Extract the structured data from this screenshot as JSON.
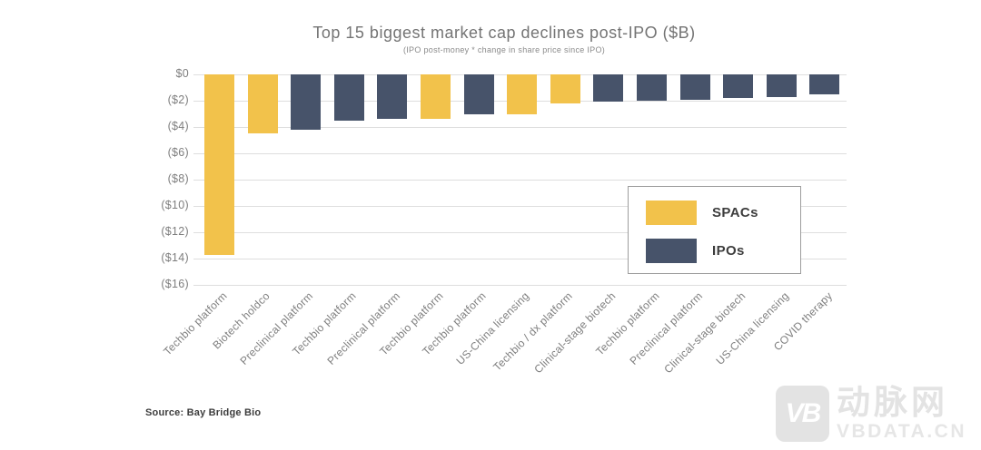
{
  "header": {
    "title": "Top 15 biggest market cap declines post-IPO ($B)",
    "subtitle": "(IPO post-money * change in share price since IPO)"
  },
  "legend": {
    "items": [
      {
        "label": "SPACs",
        "color": "#F2C24B"
      },
      {
        "label": "IPOs",
        "color": "#47536A"
      }
    ]
  },
  "footer": {
    "source": "Source: Bay Bridge Bio"
  },
  "watermark": {
    "logo_text": "VB",
    "cn_name": "动脉网",
    "site": "VBDATA.CN"
  },
  "chart_data": {
    "type": "bar",
    "title": "Top 15 biggest market cap declines post-IPO ($B)",
    "subtitle": "(IPO post-money * change in share price since IPO)",
    "xlabel": "",
    "ylabel": "",
    "ylim": [
      -16,
      0
    ],
    "grid": true,
    "legend_position": "center-right",
    "y_ticks": [
      {
        "value": 0,
        "label": "$0"
      },
      {
        "value": -2,
        "label": "($2)"
      },
      {
        "value": -4,
        "label": "($4)"
      },
      {
        "value": -6,
        "label": "($6)"
      },
      {
        "value": -8,
        "label": "($8)"
      },
      {
        "value": -10,
        "label": "($10)"
      },
      {
        "value": -12,
        "label": "($12)"
      },
      {
        "value": -14,
        "label": "($14)"
      },
      {
        "value": -16,
        "label": "($16)"
      }
    ],
    "series_colors": {
      "SPACs": "#F2C24B",
      "IPOs": "#47536A"
    },
    "points": [
      {
        "category": "Techbio platform",
        "series": "SPACs",
        "value": -13.7
      },
      {
        "category": "Biotech holdco",
        "series": "SPACs",
        "value": -4.5
      },
      {
        "category": "Preclinical platform",
        "series": "IPOs",
        "value": -4.2
      },
      {
        "category": "Techbio platform",
        "series": "IPOs",
        "value": -3.5
      },
      {
        "category": "Preclinical platform",
        "series": "IPOs",
        "value": -3.4
      },
      {
        "category": "Techbio platform",
        "series": "SPACs",
        "value": -3.4
      },
      {
        "category": "Techbio platform",
        "series": "IPOs",
        "value": -3.0
      },
      {
        "category": "US-China licensing",
        "series": "SPACs",
        "value": -3.0
      },
      {
        "category": "Techbio / dx platform",
        "series": "SPACs",
        "value": -2.2
      },
      {
        "category": "Clinical-stage biotech",
        "series": "IPOs",
        "value": -2.1
      },
      {
        "category": "Techbio platform",
        "series": "IPOs",
        "value": -2.0
      },
      {
        "category": "Preclinical platform",
        "series": "IPOs",
        "value": -1.9
      },
      {
        "category": "Clinical-stage biotech",
        "series": "IPOs",
        "value": -1.8
      },
      {
        "category": "US-China licensing",
        "series": "IPOs",
        "value": -1.7
      },
      {
        "category": "COVID therapy",
        "series": "IPOs",
        "value": -1.5
      }
    ]
  }
}
